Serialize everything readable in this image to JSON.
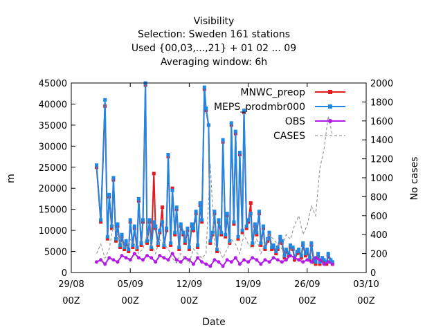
{
  "chart_data": {
    "type": "line",
    "title_lines": [
      "Visibility",
      "Selection: Sweden    161 stations",
      "Used {00,03,...,21} + 01 02 ... 09",
      "Averaging window:  6h"
    ],
    "xlabel": "Date",
    "ylabel": "m",
    "y2label": "No cases",
    "ylim": [
      0,
      45000
    ],
    "y2lim": [
      0,
      2000
    ],
    "yticks": [
      0,
      5000,
      10000,
      15000,
      20000,
      25000,
      30000,
      35000,
      40000,
      45000
    ],
    "y2ticks": [
      0,
      200,
      400,
      600,
      800,
      1000,
      1200,
      1400,
      1600,
      1800,
      2000
    ],
    "xlim": [
      0,
      32
    ],
    "xticks": [
      {
        "x": 0,
        "line1": "29/08",
        "line2": "00Z"
      },
      {
        "x": 7,
        "line1": "05/09",
        "line2": "00Z"
      },
      {
        "x": 14,
        "line1": "12/09",
        "line2": "00Z"
      },
      {
        "x": 21,
        "line1": "19/09",
        "line2": "00Z"
      },
      {
        "x": 28,
        "line1": "26/09",
        "line2": "00Z"
      },
      {
        "x": 35,
        "line1": "03/10",
        "line2": "00Z"
      }
    ],
    "legend_position": "top-right",
    "series": [
      {
        "name": "MNWC_preop",
        "color": "#e41a1c",
        "axis": "y",
        "x": [
          3.0,
          3.5,
          4.0,
          4.3,
          4.5,
          4.8,
          5.0,
          5.3,
          5.5,
          5.8,
          6.0,
          6.3,
          6.5,
          6.8,
          7.0,
          7.3,
          7.5,
          7.8,
          8.0,
          8.3,
          8.5,
          8.8,
          9.0,
          9.3,
          9.5,
          9.8,
          10.0,
          10.3,
          10.5,
          10.8,
          11.0,
          11.3,
          11.5,
          11.8,
          12.0,
          12.3,
          12.5,
          12.8,
          13.0,
          13.3,
          13.5,
          13.8,
          14.0,
          14.3,
          14.5,
          14.8,
          15.0,
          15.3,
          15.5,
          15.8,
          16.0,
          16.3,
          16.5,
          16.8,
          17.0,
          17.3,
          17.5,
          17.8,
          18.0,
          18.3,
          18.5,
          18.8,
          19.0,
          19.3,
          19.5,
          19.8,
          20.0,
          20.3,
          20.5,
          20.8,
          21.0,
          21.3,
          21.5,
          21.8,
          22.0,
          22.3,
          22.5,
          22.8,
          23.0,
          23.3,
          23.5,
          23.8,
          24.0,
          24.3,
          24.5,
          24.8,
          25.0,
          25.3,
          25.5,
          25.8,
          26.0,
          26.3,
          26.5,
          26.8,
          27.0,
          27.3,
          27.5,
          27.8,
          28.0,
          28.3,
          28.5,
          28.8,
          29.0,
          29.3,
          29.5,
          29.8,
          30.0,
          30.3,
          30.5,
          30.8,
          31.0
        ],
        "y": [
          25000,
          12000,
          39500,
          8000,
          18000,
          10500,
          22000,
          7500,
          11000,
          6000,
          8500,
          5500,
          7000,
          5000,
          12000,
          6000,
          10500,
          5500,
          17000,
          6500,
          12000,
          44500,
          7000,
          12000,
          5500,
          23500,
          10500,
          6500,
          9500,
          15500,
          6000,
          10000,
          27500,
          6500,
          20000,
          9000,
          15000,
          5500,
          11000,
          9000,
          7000,
          10000,
          5500,
          11000,
          10000,
          14000,
          6000,
          16000,
          12000,
          43500,
          38500,
          35000,
          7000,
          9000,
          14000,
          5000,
          12000,
          9000,
          31000,
          8500,
          13500,
          7000,
          35000,
          11500,
          33000,
          8000,
          28000,
          9500,
          38000,
          10500,
          12000,
          16500,
          6500,
          11000,
          9000,
          14000,
          6500,
          10500,
          5500,
          7500,
          9000,
          5500,
          6000,
          4500,
          5500,
          8000,
          7000,
          3500,
          5000,
          4000,
          6000,
          5500,
          3000,
          4500,
          5000,
          3500,
          6500,
          4000,
          5000,
          3000,
          6500,
          2500,
          2000,
          4000,
          2000,
          3000,
          2500,
          2000,
          4000,
          2500,
          2000
        ],
        "marker": "square"
      },
      {
        "name": "MEPS_prodmbr000",
        "color": "#1e88e5",
        "axis": "y",
        "x": [
          3.0,
          3.5,
          4.0,
          4.3,
          4.5,
          4.8,
          5.0,
          5.3,
          5.5,
          5.8,
          6.0,
          6.3,
          6.5,
          6.8,
          7.0,
          7.3,
          7.5,
          7.8,
          8.0,
          8.3,
          8.5,
          8.8,
          9.0,
          9.3,
          9.5,
          9.8,
          10.0,
          10.3,
          10.5,
          10.8,
          11.0,
          11.3,
          11.5,
          11.8,
          12.0,
          12.3,
          12.5,
          12.8,
          13.0,
          13.3,
          13.5,
          13.8,
          14.0,
          14.3,
          14.5,
          14.8,
          15.0,
          15.3,
          15.5,
          15.8,
          16.0,
          16.3,
          16.5,
          16.8,
          17.0,
          17.3,
          17.5,
          17.8,
          18.0,
          18.3,
          18.5,
          18.8,
          19.0,
          19.3,
          19.5,
          19.8,
          20.0,
          20.3,
          20.5,
          20.8,
          21.0,
          21.3,
          21.5,
          21.8,
          22.0,
          22.3,
          22.5,
          22.8,
          23.0,
          23.3,
          23.5,
          23.8,
          24.0,
          24.3,
          24.5,
          24.8,
          25.0,
          25.3,
          25.5,
          25.8,
          26.0,
          26.3,
          26.5,
          26.8,
          27.0,
          27.3,
          27.5,
          27.8,
          28.0,
          28.3,
          28.5,
          28.8,
          29.0,
          29.3,
          29.5,
          29.8,
          30.0,
          30.3,
          30.5,
          30.8,
          31.0
        ],
        "y": [
          25500,
          12500,
          41000,
          8500,
          18500,
          11000,
          22500,
          8000,
          11500,
          6500,
          9000,
          6000,
          7500,
          5500,
          12500,
          6500,
          11000,
          6000,
          17500,
          7000,
          12500,
          45000,
          7500,
          12500,
          6000,
          12000,
          11000,
          7000,
          10000,
          12000,
          6500,
          10500,
          28000,
          7000,
          19500,
          9500,
          15500,
          6000,
          11500,
          9500,
          7500,
          10500,
          6000,
          11500,
          10500,
          14500,
          6500,
          16500,
          12500,
          44000,
          39000,
          35000,
          7500,
          9500,
          14500,
          5500,
          12500,
          9500,
          31500,
          9000,
          14000,
          7500,
          35500,
          12000,
          33500,
          8500,
          28500,
          10000,
          38500,
          11000,
          12500,
          14000,
          7000,
          11500,
          9500,
          14500,
          7000,
          11000,
          6000,
          8000,
          9500,
          6000,
          6500,
          5000,
          6000,
          8500,
          7500,
          4000,
          5500,
          4500,
          6500,
          6000,
          3500,
          5000,
          5500,
          4000,
          7000,
          4500,
          5500,
          3500,
          7000,
          3000,
          2500,
          4500,
          2500,
          3500,
          3000,
          2500,
          4500,
          3000,
          2500
        ],
        "marker": "square"
      },
      {
        "name": "OBS",
        "color": "#b21ae6",
        "axis": "y",
        "x": [
          3.0,
          3.5,
          4.0,
          4.5,
          5.0,
          5.5,
          6.0,
          6.5,
          7.0,
          7.5,
          8.0,
          8.5,
          9.0,
          9.5,
          10.0,
          10.5,
          11.0,
          11.5,
          12.0,
          12.5,
          13.0,
          13.5,
          14.0,
          14.5,
          15.0,
          15.5,
          16.0,
          16.5,
          17.0,
          17.5,
          18.0,
          18.5,
          19.0,
          19.5,
          20.0,
          20.5,
          21.0,
          21.5,
          22.0,
          22.5,
          23.0,
          23.5,
          24.0,
          24.5,
          25.0,
          25.5,
          26.0,
          26.5,
          27.0,
          27.5,
          28.0,
          28.5,
          29.0,
          29.5,
          30.0,
          30.5,
          31.0
        ],
        "y": [
          2500,
          3000,
          2000,
          3500,
          3000,
          2500,
          4000,
          3500,
          3000,
          4500,
          3500,
          3000,
          4000,
          3500,
          2500,
          4000,
          3500,
          3000,
          4500,
          3000,
          2500,
          3500,
          3000,
          2000,
          3500,
          2500,
          2000,
          1500,
          3000,
          2500,
          1500,
          3000,
          2500,
          3500,
          2000,
          3000,
          2500,
          3500,
          3000,
          2000,
          3000,
          2500,
          3500,
          3000,
          2500,
          3000,
          4000,
          3500,
          3000,
          2500,
          3000,
          2500,
          3500,
          3000,
          2000,
          2500,
          2000
        ],
        "marker": "circle"
      },
      {
        "name": "CASES",
        "color": "#999999",
        "axis": "y2",
        "dashed": true,
        "x": [
          3.0,
          3.5,
          4.0,
          4.5,
          5.0,
          5.5,
          6.0,
          6.5,
          7.0,
          7.5,
          8.0,
          8.5,
          9.0,
          9.5,
          10.0,
          10.5,
          11.0,
          11.5,
          12.0,
          12.5,
          13.0,
          13.5,
          14.0,
          14.5,
          15.0,
          15.5,
          16.0,
          16.5,
          17.0,
          17.5,
          18.0,
          18.5,
          19.0,
          19.5,
          20.0,
          20.5,
          21.0,
          21.5,
          22.0,
          22.5,
          23.0,
          23.5,
          24.0,
          24.5,
          25.0,
          25.5,
          26.0,
          26.5,
          27.0,
          27.5,
          28.0,
          28.5,
          29.0,
          29.5,
          30.0,
          30.5,
          31.0
        ],
        "y": [
          200,
          300,
          150,
          250,
          500,
          400,
          300,
          250,
          350,
          300,
          200,
          250,
          400,
          300,
          200,
          350,
          300,
          250,
          150,
          100,
          200,
          150,
          100,
          250,
          200,
          150,
          200,
          1150,
          300,
          250,
          150,
          250,
          350,
          300,
          200,
          400,
          300,
          250,
          350,
          200,
          300,
          400,
          350,
          300,
          250,
          400,
          350,
          500,
          600,
          400,
          500,
          700,
          600,
          1100,
          1300,
          1650,
          1450
        ]
      }
    ]
  }
}
